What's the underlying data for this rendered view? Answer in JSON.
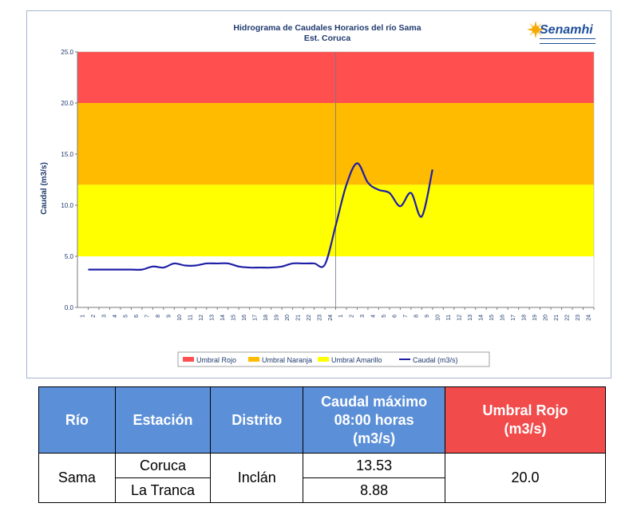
{
  "chart_data": {
    "type": "line",
    "title": "Hidrograma de Caudales Horarios del río Sama",
    "subtitle": "Est. Coruca",
    "ylabel": "Caudal (m3/s)",
    "xlabel": "",
    "ylim": [
      0,
      25
    ],
    "yticks": [
      "0.0",
      "5.0",
      "10.0",
      "15.0",
      "20.0",
      "25.0"
    ],
    "x_ticks_day1": [
      "1",
      "2",
      "3",
      "4",
      "5",
      "6",
      "7",
      "8",
      "9",
      "10",
      "11",
      "12",
      "13",
      "14",
      "15",
      "16",
      "17",
      "18",
      "19",
      "20",
      "21",
      "22",
      "23",
      "24"
    ],
    "x_ticks_day2": [
      "1",
      "2",
      "3",
      "4",
      "5",
      "6",
      "7",
      "8",
      "9",
      "10",
      "11",
      "12",
      "13",
      "14",
      "15",
      "16",
      "17",
      "18",
      "19",
      "20",
      "21",
      "22",
      "23",
      "24"
    ],
    "bands": [
      {
        "name": "Umbral Rojo",
        "from": 20,
        "to": 25,
        "color": "#ff4f4f"
      },
      {
        "name": "Umbral Naranja",
        "from": 12,
        "to": 20,
        "color": "#ffbb00"
      },
      {
        "name": "Umbral Amarillo",
        "from": 5,
        "to": 12,
        "color": "#ffff00"
      }
    ],
    "series": [
      {
        "name": "Caudal (m3/s)",
        "color": "#1f1fa8",
        "x": [
          0,
          1,
          2,
          3,
          4,
          5,
          6,
          7,
          8,
          9,
          10,
          11,
          12,
          13,
          14,
          15,
          16,
          17,
          18,
          19,
          20,
          21,
          22,
          23,
          24,
          25,
          26,
          27,
          28,
          29,
          30,
          31,
          32
        ],
        "values": [
          3.7,
          3.7,
          3.7,
          3.7,
          3.7,
          3.7,
          4.0,
          3.9,
          4.3,
          4.1,
          4.1,
          4.3,
          4.3,
          4.3,
          4.0,
          3.9,
          3.9,
          3.9,
          4.0,
          4.3,
          4.3,
          4.3,
          4.2,
          8.0,
          12.0,
          14.1,
          12.2,
          11.5,
          11.2,
          9.9,
          11.2,
          8.9,
          13.5
        ]
      }
    ]
  },
  "logo": {
    "text": "Senamhi"
  },
  "table": {
    "headers": [
      "Río",
      "Estación",
      "Distrito",
      "Caudal máximo 08:00 horas (m3/s)",
      "Umbral Rojo (m3/s)"
    ],
    "rio": "Sama",
    "distrito": "Inclán",
    "umbral_rojo": "20.0",
    "stations": [
      {
        "name": "Coruca",
        "caudal": "13.53"
      },
      {
        "name": "La Tranca",
        "caudal": "8.88"
      }
    ]
  }
}
